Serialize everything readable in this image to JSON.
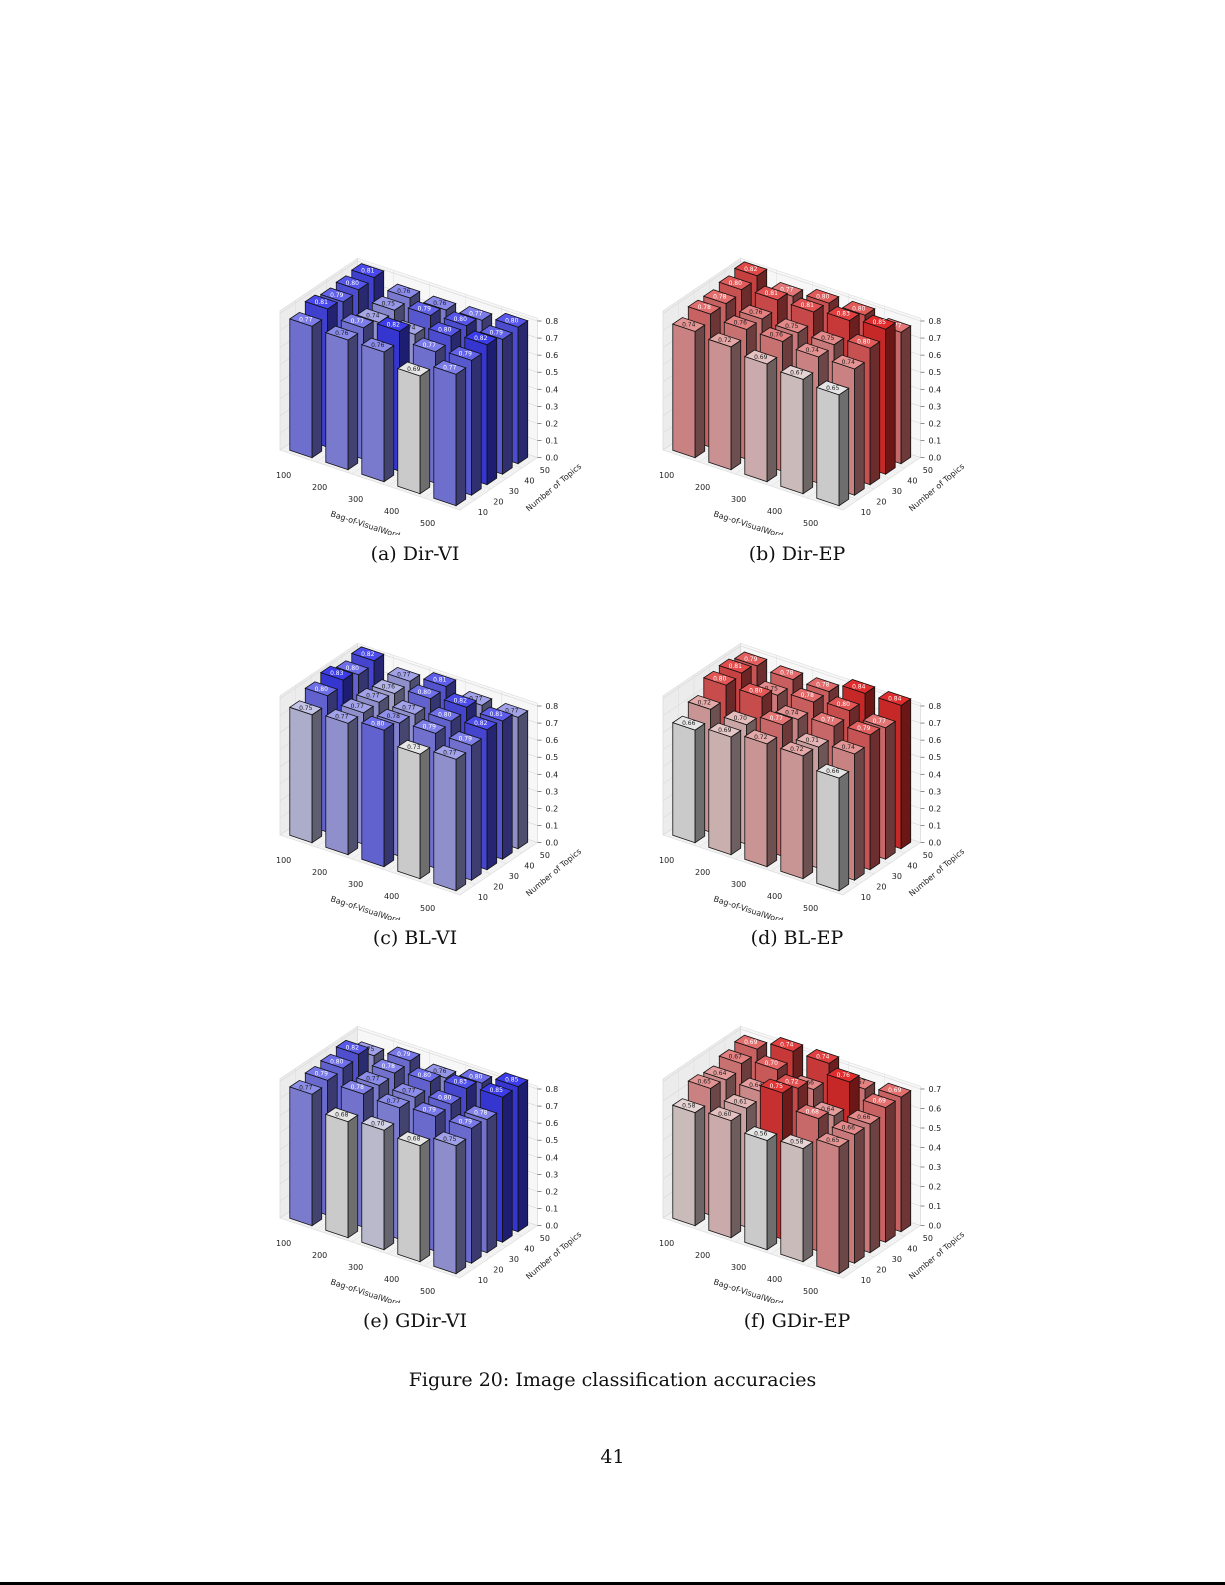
{
  "figure": {
    "caption": "Figure 20: Image classification accuracies",
    "page_number": "41"
  },
  "chart_data": [
    {
      "type": "bar3d",
      "caption": "(a) Dir-VI",
      "colormap": "blue",
      "xlabel": "Bag-of-VisualWord size",
      "ylabel": "Number of Topics",
      "x_ticks": [
        100,
        200,
        300,
        400,
        500
      ],
      "y_ticks": [
        10,
        20,
        30,
        40,
        50
      ],
      "z_ticks": [
        0.0,
        0.1,
        0.2,
        0.3,
        0.4,
        0.5,
        0.6,
        0.7,
        0.8
      ],
      "values_by_topic": {
        "10": [
          0.77,
          0.76,
          0.76,
          0.69,
          0.77
        ],
        "20": [
          0.81,
          0.77,
          0.82,
          0.77,
          0.79
        ],
        "30": [
          0.79,
          0.74,
          0.74,
          0.8,
          0.82
        ],
        "40": [
          0.8,
          0.75,
          0.79,
          0.8,
          0.79
        ],
        "50": [
          0.81,
          0.76,
          0.76,
          0.77,
          0.8
        ]
      }
    },
    {
      "type": "bar3d",
      "caption": "(b) Dir-EP",
      "colormap": "red",
      "xlabel": "Bag-of-VisualWord size",
      "ylabel": "Number of Topics",
      "x_ticks": [
        100,
        200,
        300,
        400,
        500
      ],
      "y_ticks": [
        10,
        20,
        30,
        40,
        50
      ],
      "z_ticks": [
        0.0,
        0.1,
        0.2,
        0.3,
        0.4,
        0.5,
        0.6,
        0.7,
        0.8
      ],
      "values_by_topic": {
        "10": [
          0.74,
          0.72,
          0.69,
          0.67,
          0.65
        ],
        "20": [
          0.78,
          0.76,
          0.76,
          0.74,
          0.74
        ],
        "30": [
          0.78,
          0.76,
          0.75,
          0.75,
          0.8
        ],
        "40": [
          0.8,
          0.81,
          0.81,
          0.83,
          0.85
        ],
        "50": [
          0.82,
          0.77,
          0.8,
          0.8,
          0.77
        ]
      }
    },
    {
      "type": "bar3d",
      "caption": "(c) BL-VI",
      "colormap": "blue",
      "xlabel": "Bag-of-VisualWord size",
      "ylabel": "Number of Topics",
      "x_ticks": [
        100,
        200,
        300,
        400,
        500
      ],
      "y_ticks": [
        10,
        20,
        30,
        40,
        50
      ],
      "z_ticks": [
        0.0,
        0.1,
        0.2,
        0.3,
        0.4,
        0.5,
        0.6,
        0.7,
        0.8
      ],
      "values_by_topic": {
        "10": [
          0.75,
          0.77,
          0.8,
          0.73,
          0.77
        ],
        "20": [
          0.8,
          0.77,
          0.78,
          0.79,
          0.79
        ],
        "30": [
          0.83,
          0.77,
          0.77,
          0.8,
          0.82
        ],
        "40": [
          0.8,
          0.76,
          0.8,
          0.82,
          0.81
        ],
        "50": [
          0.82,
          0.77,
          0.81,
          0.77,
          0.77
        ]
      }
    },
    {
      "type": "bar3d",
      "caption": "(d) BL-EP",
      "colormap": "red",
      "xlabel": "Bag-of-VisualWord size",
      "ylabel": "Number of Topics",
      "x_ticks": [
        100,
        200,
        300,
        400,
        500
      ],
      "y_ticks": [
        10,
        20,
        30,
        40,
        50
      ],
      "z_ticks": [
        0.0,
        0.1,
        0.2,
        0.3,
        0.4,
        0.5,
        0.6,
        0.7,
        0.8
      ],
      "values_by_topic": {
        "10": [
          0.66,
          0.69,
          0.72,
          0.72,
          0.66
        ],
        "20": [
          0.72,
          0.7,
          0.77,
          0.71,
          0.74
        ],
        "30": [
          0.8,
          0.8,
          0.74,
          0.77,
          0.79
        ],
        "40": [
          0.81,
          0.75,
          0.78,
          0.8,
          0.77
        ],
        "50": [
          0.79,
          0.78,
          0.78,
          0.84,
          0.84
        ]
      }
    },
    {
      "type": "bar3d",
      "caption": "(e) GDir-VI",
      "colormap": "blue",
      "xlabel": "Bag-of-VisualWord size",
      "ylabel": "Number of Topics",
      "x_ticks": [
        100,
        200,
        300,
        400,
        500
      ],
      "y_ticks": [
        10,
        20,
        30,
        40,
        50
      ],
      "z_ticks": [
        0.0,
        0.1,
        0.2,
        0.3,
        0.4,
        0.5,
        0.6,
        0.7,
        0.8
      ],
      "values_by_topic": {
        "10": [
          0.77,
          0.68,
          0.7,
          0.68,
          0.75
        ],
        "20": [
          0.79,
          0.78,
          0.77,
          0.79,
          0.79
        ],
        "30": [
          0.8,
          0.77,
          0.77,
          0.8,
          0.78
        ],
        "40": [
          0.82,
          0.78,
          0.8,
          0.83,
          0.85
        ],
        "50": [
          0.75,
          0.79,
          0.76,
          0.8,
          0.85
        ]
      }
    },
    {
      "type": "bar3d",
      "caption": "(f) GDir-EP",
      "colormap": "red",
      "xlabel": "Bag-of-VisualWord size",
      "ylabel": "Number of Topics",
      "x_ticks": [
        100,
        200,
        300,
        400,
        500
      ],
      "y_ticks": [
        10,
        20,
        30,
        40,
        50
      ],
      "z_ticks": [
        0.0,
        0.1,
        0.2,
        0.3,
        0.4,
        0.5,
        0.6,
        0.7
      ],
      "values_by_topic": {
        "10": [
          0.58,
          0.6,
          0.56,
          0.58,
          0.65
        ],
        "20": [
          0.65,
          0.61,
          0.75,
          0.68,
          0.66
        ],
        "30": [
          0.64,
          0.64,
          0.72,
          0.64,
          0.66
        ],
        "40": [
          0.67,
          0.7,
          0.66,
          0.76,
          0.69
        ],
        "50": [
          0.69,
          0.74,
          0.74,
          0.67,
          0.69
        ]
      }
    }
  ]
}
